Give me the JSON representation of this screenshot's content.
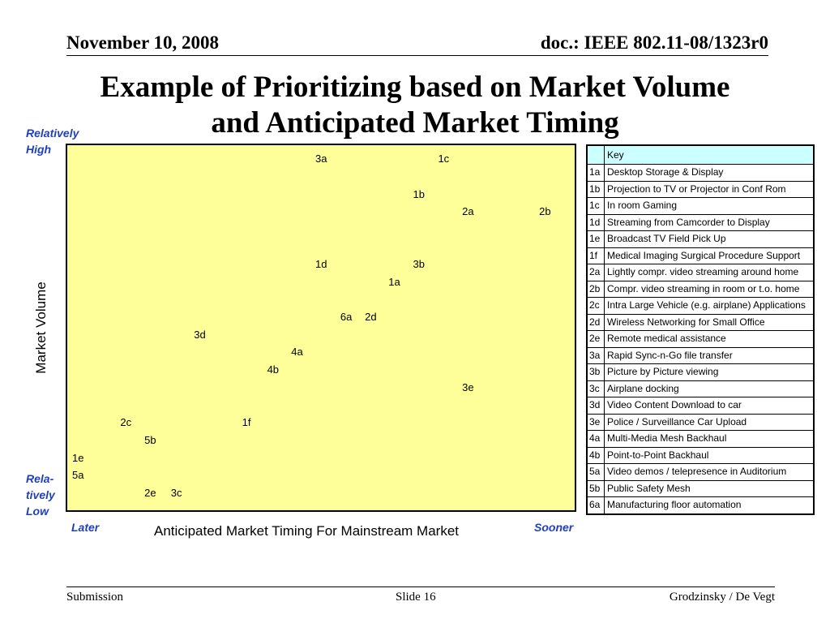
{
  "header": {
    "date": "November 10, 2008",
    "doc": "doc.: IEEE 802.11-08/1323r0"
  },
  "title": {
    "line1": "Example of Prioritizing based on Market Volume",
    "line2": "and Anticipated Market Timing"
  },
  "axis": {
    "y_high": [
      "Relatively",
      "High"
    ],
    "y_low": [
      "Rela-",
      "tively",
      "Low"
    ],
    "y_title": "Market Volume",
    "x_later": "Later",
    "x_sooner": "Sooner",
    "x_title": "Anticipated Market Timing For Mainstream Market"
  },
  "chart_data": {
    "type": "scatter",
    "xlabel": "Anticipated Market Timing For Mainstream Market",
    "ylabel": "Market Volume",
    "points": [
      {
        "label": "3a",
        "x": 0.505,
        "y": 0.985
      },
      {
        "label": "1c",
        "x": 0.76,
        "y": 0.985
      },
      {
        "label": "1b",
        "x": 0.708,
        "y": 0.884
      },
      {
        "label": "2a",
        "x": 0.81,
        "y": 0.834
      },
      {
        "label": "2b",
        "x": 0.97,
        "y": 0.834
      },
      {
        "label": "1d",
        "x": 0.505,
        "y": 0.683
      },
      {
        "label": "3b",
        "x": 0.708,
        "y": 0.683
      },
      {
        "label": "1a",
        "x": 0.657,
        "y": 0.633
      },
      {
        "label": "6a",
        "x": 0.557,
        "y": 0.532
      },
      {
        "label": "2d",
        "x": 0.608,
        "y": 0.532
      },
      {
        "label": "3d",
        "x": 0.253,
        "y": 0.482
      },
      {
        "label": "4a",
        "x": 0.455,
        "y": 0.432
      },
      {
        "label": "4b",
        "x": 0.405,
        "y": 0.381
      },
      {
        "label": "3e",
        "x": 0.81,
        "y": 0.33
      },
      {
        "label": "2c",
        "x": 0.1,
        "y": 0.23
      },
      {
        "label": "1f",
        "x": 0.353,
        "y": 0.23
      },
      {
        "label": "5b",
        "x": 0.15,
        "y": 0.18
      },
      {
        "label": "1e",
        "x": 0.0,
        "y": 0.129
      },
      {
        "label": "5a",
        "x": 0.0,
        "y": 0.079
      },
      {
        "label": "2e",
        "x": 0.15,
        "y": 0.028
      },
      {
        "label": "3c",
        "x": 0.205,
        "y": 0.028
      }
    ]
  },
  "key": {
    "title": "Key",
    "rows": [
      {
        "code": "1a",
        "desc": "Desktop Storage & Display"
      },
      {
        "code": "1b",
        "desc": "Projection to TV or Projector in Conf Rom"
      },
      {
        "code": "1c",
        "desc": "In room Gaming"
      },
      {
        "code": "1d",
        "desc": "Streaming from Camcorder to Display"
      },
      {
        "code": "1e",
        "desc": "Broadcast TV Field Pick Up"
      },
      {
        "code": "1f",
        "desc": "Medical Imaging Surgical Procedure Support"
      },
      {
        "code": "2a",
        "desc": "Lightly compr. video streaming around home"
      },
      {
        "code": "2b",
        "desc": "Compr. video streaming in room or t.o. home"
      },
      {
        "code": "2c",
        "desc": "Intra Large Vehicle (e.g. airplane) Applications"
      },
      {
        "code": "2d",
        "desc": "Wireless Networking for Small Office"
      },
      {
        "code": "2e",
        "desc": "Remote medical assistance"
      },
      {
        "code": "3a",
        "desc": "Rapid Sync-n-Go file transfer"
      },
      {
        "code": "3b",
        "desc": "Picture by Picture viewing"
      },
      {
        "code": "3c",
        "desc": "Airplane docking"
      },
      {
        "code": "3d",
        "desc": "Video Content Download to car"
      },
      {
        "code": "3e",
        "desc": "Police / Surveillance Car Upload"
      },
      {
        "code": "4a",
        "desc": "Multi-Media Mesh Backhaul"
      },
      {
        "code": "4b",
        "desc": "Point-to-Point Backhaul"
      },
      {
        "code": "5a",
        "desc": "Video demos / telepresence in Auditorium"
      },
      {
        "code": "5b",
        "desc": "Public Safety Mesh"
      },
      {
        "code": "6a",
        "desc": "Manufacturing floor automation"
      }
    ]
  },
  "footer": {
    "left": "Submission",
    "center": "Slide 16",
    "right": "Grodzinsky / De Vegt"
  }
}
